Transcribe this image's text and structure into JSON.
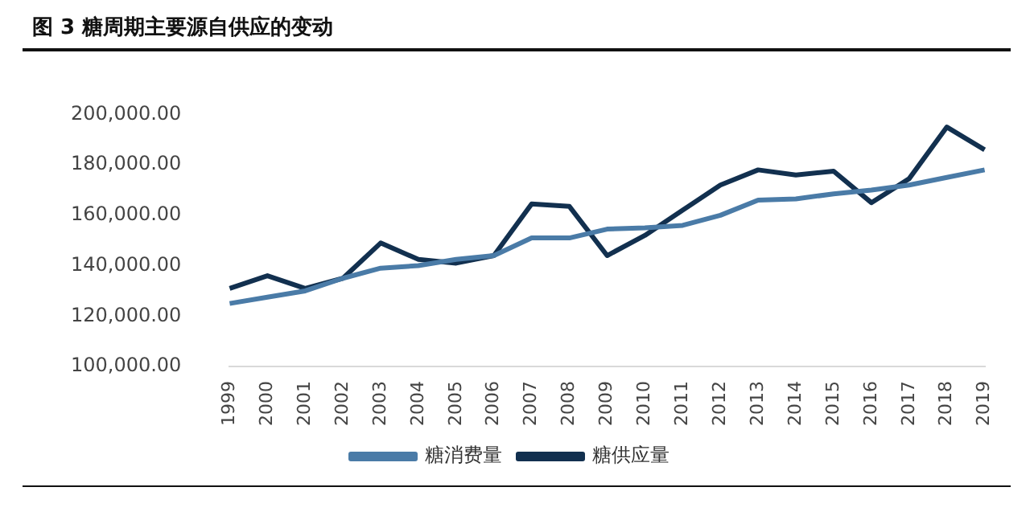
{
  "chart_data": {
    "type": "line",
    "title": "图 3 糖周期主要源自供应的变动",
    "categories": [
      "1999",
      "2000",
      "2001",
      "2002",
      "2003",
      "2004",
      "2005",
      "2006",
      "2007",
      "2008",
      "2009",
      "2010",
      "2011",
      "2012",
      "2013",
      "2014",
      "2015",
      "2016",
      "2017",
      "2018",
      "2019"
    ],
    "series": [
      {
        "name": "糖消费量",
        "color": "#4a7ba7",
        "values": [
          125000,
          127500,
          130000,
          135000,
          139000,
          140000,
          142500,
          144000,
          151000,
          151000,
          154500,
          155000,
          156000,
          160000,
          166000,
          166500,
          168500,
          170000,
          172000,
          175000,
          178000
        ]
      },
      {
        "name": "糖供应量",
        "color": "#12304f",
        "values": [
          131000,
          136000,
          131000,
          135000,
          149000,
          142500,
          141000,
          144000,
          164500,
          163500,
          144000,
          152000,
          162000,
          172000,
          178000,
          176000,
          177500,
          165000,
          174500,
          195000,
          186000
        ]
      }
    ],
    "ylim": [
      100000,
      200000
    ],
    "yticks": [
      {
        "value": 100000,
        "label": "100,000.00"
      },
      {
        "value": 120000,
        "label": "120,000.00"
      },
      {
        "value": 140000,
        "label": "140,000.00"
      },
      {
        "value": 160000,
        "label": "160,000.00"
      },
      {
        "value": 180000,
        "label": "180,000.00"
      },
      {
        "value": 200000,
        "label": "200,000.00"
      }
    ],
    "grid": false,
    "legend": "bottom",
    "marker": "none",
    "line_style": "solid"
  }
}
